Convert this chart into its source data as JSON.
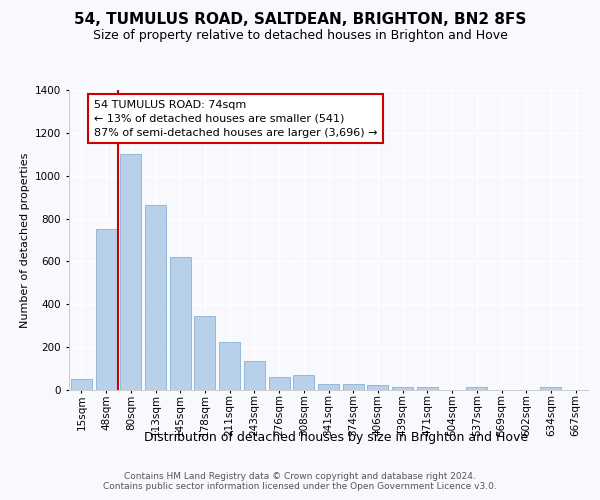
{
  "title1": "54, TUMULUS ROAD, SALTDEAN, BRIGHTON, BN2 8FS",
  "title2": "Size of property relative to detached houses in Brighton and Hove",
  "xlabel": "Distribution of detached houses by size in Brighton and Hove",
  "ylabel": "Number of detached properties",
  "categories": [
    "15sqm",
    "48sqm",
    "80sqm",
    "113sqm",
    "145sqm",
    "178sqm",
    "211sqm",
    "243sqm",
    "276sqm",
    "308sqm",
    "341sqm",
    "374sqm",
    "406sqm",
    "439sqm",
    "471sqm",
    "504sqm",
    "537sqm",
    "569sqm",
    "602sqm",
    "634sqm",
    "667sqm"
  ],
  "values": [
    50,
    750,
    1100,
    865,
    620,
    345,
    225,
    135,
    62,
    70,
    30,
    30,
    22,
    15,
    15,
    0,
    12,
    0,
    0,
    12,
    0
  ],
  "bar_color": "#b8d0ea",
  "bar_edge_color": "#8ab0d4",
  "vline_color": "#cc0000",
  "vline_index": 1.5,
  "annotation_line1": "54 TUMULUS ROAD: 74sqm",
  "annotation_line2": "← 13% of detached houses are smaller (541)",
  "annotation_line3": "87% of semi-detached houses are larger (3,696) →",
  "annotation_box_facecolor": "#ffffff",
  "annotation_box_edgecolor": "#cc0000",
  "ylim_max": 1400,
  "yticks": [
    0,
    200,
    400,
    600,
    800,
    1000,
    1200,
    1400
  ],
  "footer1": "Contains HM Land Registry data © Crown copyright and database right 2024.",
  "footer2": "Contains public sector information licensed under the Open Government Licence v3.0.",
  "bg_color": "#f7f9fd",
  "grid_color": "#ffffff",
  "title1_fontsize": 11,
  "title2_fontsize": 9,
  "ylabel_fontsize": 8,
  "xlabel_fontsize": 9,
  "tick_fontsize": 7.5,
  "annotation_fontsize": 8,
  "footer_fontsize": 6.5
}
